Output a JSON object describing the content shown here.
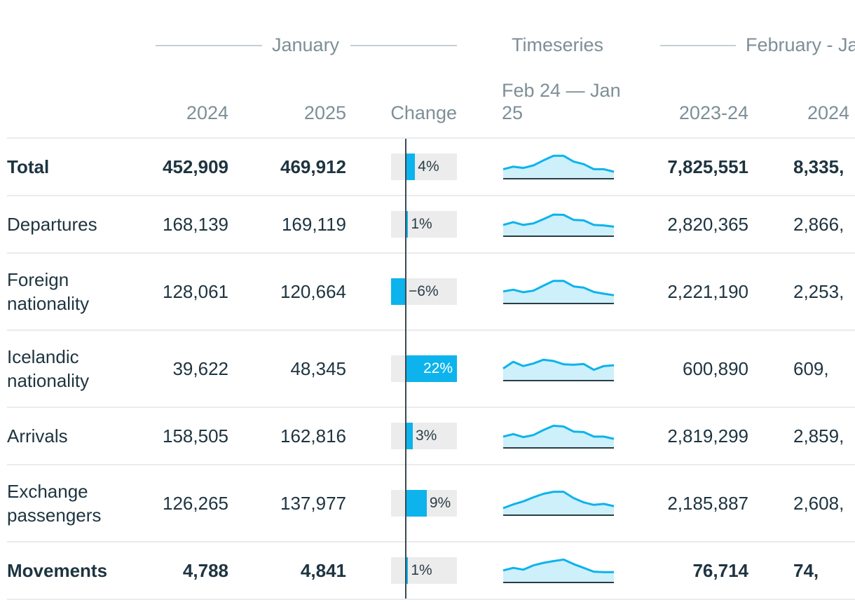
{
  "groups": {
    "january": "January",
    "timeseries": "Timeseries",
    "feb_jan": "February - Ja"
  },
  "columns": {
    "y2024": "2024",
    "y2025": "2025",
    "change": "Change",
    "timeseries_line1": "Feb 24 — Jan",
    "timeseries_line2": "25",
    "p2023_24": "2023-24",
    "p2024_25": "2024"
  },
  "colors": {
    "bar": "#0db3ec",
    "spark_fill": "#cdf0fb",
    "spark_line": "#0db3ec",
    "text": "#1e3440",
    "header_text": "#7d8f97"
  },
  "chart_data": {
    "type": "table",
    "change_domain": [
      -6,
      22
    ],
    "rows": [
      {
        "label": "Total",
        "bold": true,
        "y2024": "452,909",
        "y2025": "469,912",
        "change": 4,
        "change_label": "4%",
        "p2023_24": "7,825,551",
        "p2024_25": "8,335,",
        "spark": [
          0.35,
          0.45,
          0.4,
          0.5,
          0.7,
          0.88,
          0.88,
          0.65,
          0.55,
          0.35,
          0.35,
          0.25
        ]
      },
      {
        "label": "Departures",
        "bold": false,
        "y2024": "168,139",
        "y2025": "169,119",
        "change": 1,
        "change_label": "1%",
        "p2023_24": "2,820,365",
        "p2024_25": "2,866,",
        "spark": [
          0.42,
          0.53,
          0.42,
          0.48,
          0.65,
          0.83,
          0.82,
          0.62,
          0.6,
          0.42,
          0.4,
          0.35
        ]
      },
      {
        "label": "Foreign nationality",
        "bold": false,
        "y2024": "128,061",
        "y2025": "120,664",
        "change": -6,
        "change_label": "−6%",
        "p2023_24": "2,221,190",
        "p2024_25": "2,253,",
        "spark": [
          0.45,
          0.52,
          0.42,
          0.48,
          0.68,
          0.87,
          0.87,
          0.65,
          0.6,
          0.43,
          0.36,
          0.3
        ]
      },
      {
        "label": "Icelandic nationality",
        "bold": false,
        "y2024": "39,622",
        "y2025": "48,345",
        "change": 22,
        "change_label": "22%",
        "p2023_24": "600,890",
        "p2024_25": "609,",
        "spark": [
          0.45,
          0.72,
          0.55,
          0.65,
          0.8,
          0.75,
          0.62,
          0.6,
          0.63,
          0.4,
          0.55,
          0.58
        ]
      },
      {
        "label": "Arrivals",
        "bold": false,
        "y2024": "158,505",
        "y2025": "162,816",
        "change": 3,
        "change_label": "3%",
        "p2023_24": "2,819,299",
        "p2024_25": "2,859,",
        "spark": [
          0.42,
          0.52,
          0.4,
          0.48,
          0.68,
          0.85,
          0.82,
          0.62,
          0.6,
          0.42,
          0.42,
          0.33
        ]
      },
      {
        "label": "Exchange passengers",
        "bold": false,
        "y2024": "126,265",
        "y2025": "137,977",
        "change": 9,
        "change_label": "9%",
        "p2023_24": "2,185,887",
        "p2024_25": "2,608,",
        "spark": [
          0.25,
          0.4,
          0.52,
          0.68,
          0.82,
          0.9,
          0.9,
          0.65,
          0.48,
          0.38,
          0.42,
          0.33
        ]
      },
      {
        "label": "Movements",
        "bold": true,
        "y2024": "4,788",
        "y2025": "4,841",
        "change": 1,
        "change_label": "1%",
        "p2023_24": "76,714",
        "p2024_25": "74,",
        "spark": [
          0.45,
          0.55,
          0.48,
          0.65,
          0.75,
          0.82,
          0.88,
          0.7,
          0.55,
          0.4,
          0.38,
          0.38
        ]
      }
    ]
  }
}
